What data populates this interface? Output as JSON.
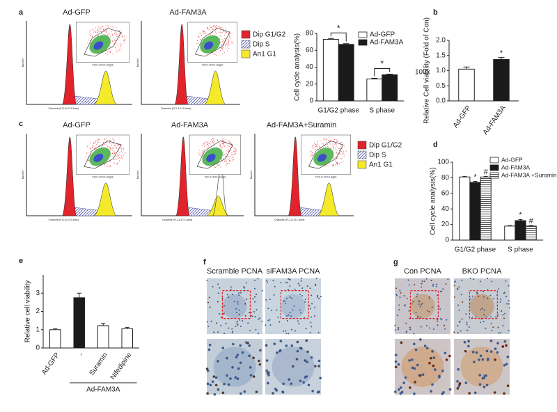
{
  "panel_labels": [
    "a",
    "b",
    "c",
    "d",
    "e",
    "f",
    "g"
  ],
  "flow_a": {
    "titles": [
      "Ad-GFP",
      "Ad-FAM3A"
    ],
    "legend": [
      "Dip G1/G2",
      "Dip S",
      "An1 G1"
    ],
    "ylabel": "Number",
    "xlabel": "Channels (FL2-A-FL2-Area)",
    "inset_xlabel": "FSC-H-FSC-Height"
  },
  "flow_c": {
    "titles": [
      "Ad-GFP",
      "Ad-FAM3A",
      "Ad-FAM3A+Suramin"
    ],
    "legend": [
      "Dip G1/G2",
      "Dip S",
      "An1 G1"
    ],
    "ylabel": "Number",
    "xlabel": "Channels (FL2-A-FL2-Area)",
    "inset_xlabel": "FSC-H-FSC-Height"
  },
  "side_label": "100x",
  "micro_f": {
    "titles": [
      "Scramble PCNA",
      "siFAM3A PCNA"
    ]
  },
  "micro_g": {
    "titles": [
      "Con PCNA",
      "BKO PCNA"
    ]
  },
  "chart_data": [
    {
      "type": "bar",
      "ylabel": "Cell cycle analysis(%)",
      "categories": [
        "G1/G2 phase",
        "S phase"
      ],
      "series": [
        {
          "name": "Ad-GFP",
          "color": "#ffffff",
          "values": [
            73,
            26
          ],
          "errors": [
            1,
            0.8
          ]
        },
        {
          "name": "Ad-FAM3A",
          "color": "#1a1a1a",
          "values": [
            67,
            31
          ],
          "errors": [
            0.8,
            0.8
          ]
        }
      ],
      "ylim": [
        0,
        80
      ],
      "yticks": [
        0,
        20,
        40,
        60,
        80
      ],
      "legend": "upper right",
      "annotations": [
        "*",
        "*"
      ]
    },
    {
      "type": "bar",
      "ylabel": "Relative Cell viability (Fold of Con)",
      "categories": [
        "Ad-GFP",
        "Ad-FAM3A"
      ],
      "values": [
        1.05,
        1.37
      ],
      "errors": [
        0.07,
        0.07
      ],
      "colors": [
        "#ffffff",
        "#1a1a1a"
      ],
      "ylim": [
        0,
        2
      ],
      "yticks": [
        {
          "value": 0,
          "label": "0.0"
        },
        0.5,
        {
          "value": 1,
          "label": "1.0"
        },
        1.5,
        {
          "value": 2,
          "label": "2.0"
        }
      ],
      "annotations": [
        "*"
      ]
    },
    {
      "type": "bar",
      "ylabel": "Cell cycle analysis(%)",
      "categories": [
        "G1/G2 phase",
        "S phase"
      ],
      "series": [
        {
          "name": "Ad-GFP",
          "color": "#ffffff",
          "values": [
            81,
            18
          ],
          "errors": [
            0.8,
            0.6
          ]
        },
        {
          "name": "Ad-FAM3A",
          "color": "#1a1a1a",
          "values": [
            74,
            25
          ],
          "errors": [
            1.5,
            1.5
          ]
        },
        {
          "name": "Ad-FAM3A +Suramin",
          "color": "#ffffff",
          "pattern": "horizontal-lines",
          "values": [
            81,
            18
          ],
          "errors": [
            0.8,
            0.8
          ]
        }
      ],
      "ylim": [
        0,
        100
      ],
      "yticks": [
        0,
        20,
        40,
        60,
        80,
        100
      ],
      "legend": "upper right",
      "annotations": [
        "*",
        "#",
        "*",
        "#"
      ]
    },
    {
      "type": "bar",
      "ylabel": "Relative cell viability",
      "categories": [
        "Ad-GFP",
        "-",
        "Suramin",
        "Nifedipine"
      ],
      "values": [
        1.0,
        2.75,
        1.22,
        1.05
      ],
      "errors": [
        0.05,
        0.25,
        0.12,
        0.08
      ],
      "colors": [
        "#ffffff",
        "#1a1a1a",
        "#ffffff",
        "#ffffff"
      ],
      "ylim": [
        0,
        4
      ],
      "yticks": [
        0,
        1,
        2,
        3
      ],
      "group_label": "Ad-FAM3A"
    }
  ]
}
